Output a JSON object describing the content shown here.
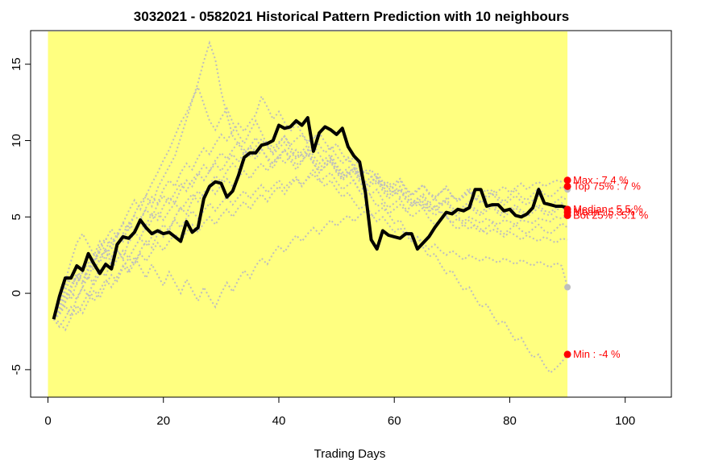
{
  "chart_data": {
    "type": "line",
    "title": "3032021 - 0582021 Historical Pattern Prediction with 10 neighbours",
    "xlabel": "Trading Days",
    "ylabel": "",
    "xlim": [
      -3,
      108
    ],
    "ylim": [
      -6.8,
      17.2
    ],
    "x_ticks": [
      0,
      20,
      40,
      60,
      80,
      100
    ],
    "y_ticks": [
      -5,
      0,
      5,
      10,
      15
    ],
    "highlight_region": {
      "x_from": 0,
      "x_to": 90,
      "color": "#ffff80"
    },
    "main_series": {
      "name": "",
      "color": "#000000",
      "x": [
        1,
        2,
        3,
        4,
        5,
        6,
        7,
        8,
        9,
        10,
        11,
        12,
        13,
        14,
        15,
        16,
        17,
        18,
        19,
        20,
        21,
        22,
        23,
        24,
        25,
        26,
        27,
        28,
        29,
        30,
        31,
        32,
        33,
        34,
        35,
        36,
        37,
        38,
        39,
        40,
        41,
        42,
        43,
        44,
        45,
        46,
        47,
        48,
        49,
        50,
        51,
        52,
        53,
        54,
        55,
        56,
        57,
        58,
        59,
        60,
        61,
        62,
        63,
        64,
        65,
        66,
        67,
        68,
        69,
        70,
        71,
        72,
        73,
        74,
        75,
        76,
        77,
        78,
        79,
        80,
        81,
        82,
        83,
        84,
        85,
        86,
        87,
        88,
        89,
        90
      ],
      "y": [
        -1.7,
        -0.2,
        1.0,
        1.0,
        1.8,
        1.5,
        2.6,
        1.9,
        1.3,
        1.9,
        1.6,
        3.2,
        3.7,
        3.6,
        4.0,
        4.8,
        4.3,
        3.9,
        4.1,
        3.9,
        4.0,
        3.7,
        3.4,
        4.7,
        4.0,
        4.3,
        6.2,
        7.0,
        7.3,
        7.2,
        6.3,
        6.7,
        7.7,
        8.9,
        9.2,
        9.2,
        9.7,
        9.8,
        10.0,
        11.0,
        10.8,
        10.9,
        11.3,
        11.0,
        11.5,
        9.3,
        10.5,
        10.9,
        10.7,
        10.4,
        10.8,
        9.6,
        9.0,
        8.6,
        6.6,
        3.5,
        2.9,
        4.1,
        3.8,
        3.7,
        3.6,
        3.9,
        3.9,
        2.9,
        3.3,
        3.7,
        4.3,
        4.8,
        5.3,
        5.2,
        5.5,
        5.4,
        5.6,
        6.8,
        6.8,
        5.7,
        5.8,
        5.8,
        5.4,
        5.5,
        5.1,
        5.0,
        5.2,
        5.6,
        6.8,
        5.9,
        5.8,
        5.7,
        5.7,
        5.6
      ]
    },
    "neighbour_series": [
      {
        "x_start": 1,
        "y": [
          -1.7,
          -0.6,
          0.5,
          1.2,
          0.9,
          1.8,
          2.4,
          2.0,
          3.1,
          3.6,
          2.9,
          3.9,
          4.6,
          4.1,
          5.2,
          5.9,
          6.4,
          5.7,
          6.9,
          7.6,
          8.3,
          9.0,
          10.2,
          11.4,
          12.6,
          13.8,
          15.2,
          16.4,
          15.3,
          13.2,
          11.7,
          10.3,
          9.8,
          9.1,
          9.6,
          10.2,
          9.5,
          8.8,
          8.2,
          8.9,
          9.4,
          8.7,
          8.1,
          8.6,
          9.2,
          8.5,
          7.9,
          8.3,
          8.7,
          8.0,
          7.5,
          7.8,
          8.2,
          7.6,
          7.1,
          7.3,
          7.7,
          7.0,
          6.6,
          7.0,
          7.4,
          6.8,
          6.4,
          6.7,
          7.1,
          6.5,
          6.2,
          6.6,
          7.0,
          6.4,
          6.1,
          6.5,
          6.9,
          6.3,
          6.0,
          6.4,
          6.8,
          6.3,
          6.0,
          6.4,
          6.8,
          6.3,
          6.1,
          6.5,
          6.9,
          6.5,
          6.3,
          6.6,
          7.0,
          6.8
        ]
      },
      {
        "x_start": 1,
        "y": [
          -1.7,
          -1.2,
          -0.5,
          0.3,
          1.1,
          0.6,
          1.5,
          2.2,
          2.8,
          3.5,
          4.2,
          3.7,
          4.6,
          5.4,
          6.1,
          5.5,
          6.4,
          7.2,
          7.9,
          8.7,
          9.4,
          10.3,
          11.2,
          11.8,
          12.7,
          13.5,
          12.4,
          11.3,
          10.7,
          11.5,
          12.1,
          11.2,
          10.4,
          9.8,
          10.6,
          11.3,
          10.5,
          9.7,
          9.2,
          9.8,
          10.3,
          9.6,
          8.9,
          9.3,
          9.7,
          9.0,
          8.5,
          8.8,
          9.1,
          8.4,
          7.9,
          8.2,
          8.5,
          7.8,
          7.3,
          7.6,
          7.9,
          7.3,
          6.9,
          7.2,
          7.5,
          6.9,
          6.5,
          6.8,
          7.1,
          6.6,
          6.3,
          6.6,
          6.9,
          6.4,
          6.1,
          6.4,
          6.7,
          6.2,
          5.9,
          6.2,
          6.5,
          6.1,
          5.8,
          6.1,
          6.4,
          6.0,
          5.8,
          6.1,
          6.4,
          6.0,
          5.8,
          6.0,
          6.3,
          6.1
        ]
      },
      {
        "x_start": 1,
        "y": [
          -1.7,
          -0.9,
          0.1,
          -0.4,
          0.7,
          1.4,
          1.0,
          2.1,
          2.7,
          2.2,
          3.3,
          3.9,
          3.4,
          4.5,
          5.1,
          4.7,
          5.6,
          6.3,
          5.9,
          6.8,
          7.4,
          7.0,
          7.9,
          8.5,
          8.1,
          8.9,
          9.5,
          9.1,
          9.8,
          10.4,
          10.0,
          10.6,
          11.1,
          10.6,
          11.2,
          11.7,
          12.9,
          12.2,
          11.4,
          11.9,
          11.2,
          10.6,
          11.1,
          10.5,
          9.9,
          10.3,
          9.7,
          9.2,
          9.6,
          9.0,
          8.5,
          8.9,
          8.3,
          7.8,
          8.1,
          7.6,
          7.1,
          7.4,
          6.9,
          6.5,
          6.8,
          6.3,
          5.9,
          6.2,
          5.8,
          5.4,
          5.7,
          5.3,
          5.0,
          5.3,
          5.0,
          4.7,
          5.0,
          4.8,
          4.6,
          4.9,
          4.7,
          4.5,
          4.8,
          4.7,
          4.5,
          4.8,
          4.7,
          4.6,
          4.9,
          4.8,
          4.7,
          5.0,
          4.9,
          5.1
        ]
      },
      {
        "x_start": 1,
        "y": [
          -1.7,
          -1.4,
          -0.8,
          -1.5,
          -0.3,
          0.4,
          -0.2,
          0.9,
          1.6,
          1.1,
          2.2,
          2.8,
          2.3,
          3.4,
          4.0,
          3.6,
          4.5,
          5.2,
          4.8,
          5.7,
          6.3,
          5.9,
          6.8,
          7.4,
          7.0,
          7.8,
          8.4,
          8.0,
          8.7,
          9.2,
          8.8,
          9.4,
          9.9,
          9.4,
          9.0,
          9.6,
          10.1,
          9.6,
          9.1,
          9.5,
          9.9,
          9.3,
          8.8,
          9.1,
          9.4,
          8.7,
          8.2,
          8.5,
          8.8,
          8.1,
          7.6,
          7.9,
          8.2,
          7.5,
          7.0,
          7.3,
          7.6,
          6.9,
          6.4,
          6.7,
          7.0,
          6.3,
          5.9,
          6.2,
          6.5,
          5.9,
          5.6,
          5.9,
          6.2,
          5.6,
          5.4,
          5.7,
          6.0,
          5.5,
          5.3,
          5.6,
          5.9,
          5.4,
          5.2,
          5.5,
          5.8,
          5.4,
          5.2,
          5.5,
          5.8,
          5.4,
          5.3,
          5.6,
          5.9,
          5.5
        ]
      },
      {
        "x_start": 1,
        "y": [
          -1.7,
          -1.9,
          -2.4,
          -1.6,
          -0.8,
          -1.3,
          -0.5,
          0.2,
          -0.3,
          0.6,
          1.2,
          0.8,
          1.7,
          2.3,
          1.9,
          2.8,
          3.4,
          3.0,
          3.9,
          4.5,
          4.1,
          5.0,
          5.6,
          5.2,
          6.1,
          6.7,
          6.3,
          7.1,
          7.7,
          7.3,
          8.0,
          8.5,
          8.1,
          8.7,
          9.2,
          8.8,
          9.4,
          8.9,
          8.5,
          9.0,
          9.4,
          8.9,
          8.4,
          8.7,
          9.1,
          8.5,
          8.0,
          8.3,
          8.6,
          7.9,
          7.4,
          7.7,
          8.0,
          7.3,
          6.8,
          7.1,
          7.4,
          6.7,
          6.2,
          6.5,
          6.8,
          6.1,
          5.7,
          6.0,
          6.3,
          5.7,
          5.4,
          5.7,
          6.0,
          5.4,
          5.2,
          5.5,
          5.8,
          5.3,
          5.1,
          5.4,
          5.7,
          5.2,
          5.0,
          5.3,
          5.6,
          5.2,
          5.0,
          5.3,
          5.6,
          5.2,
          5.1,
          5.4,
          5.7,
          5.3
        ]
      },
      {
        "x_start": 1,
        "y": [
          -1.7,
          -0.4,
          0.8,
          2.1,
          3.3,
          3.9,
          3.2,
          2.5,
          3.4,
          2.7,
          2.0,
          2.9,
          2.2,
          1.5,
          2.4,
          1.7,
          1.0,
          1.9,
          1.2,
          0.5,
          1.4,
          0.7,
          0.0,
          0.9,
          0.2,
          -0.5,
          0.4,
          -0.3,
          -0.9,
          0.0,
          0.7,
          0.1,
          0.9,
          1.5,
          1.0,
          1.8,
          2.3,
          1.9,
          2.6,
          3.1,
          2.7,
          3.3,
          3.8,
          3.4,
          3.9,
          4.3,
          3.9,
          4.4,
          4.8,
          4.4,
          4.8,
          5.1,
          4.7,
          5.1,
          5.4,
          5.0,
          5.3,
          5.6,
          5.2,
          5.5,
          5.8,
          5.4,
          5.7,
          6.0,
          5.6,
          5.9,
          6.2,
          5.8,
          6.1,
          6.4,
          6.0,
          6.3,
          6.6,
          6.2,
          6.5,
          6.8,
          6.4,
          6.7,
          7.0,
          6.6,
          6.9,
          7.2,
          6.8,
          7.1,
          7.3,
          7.0,
          7.2,
          7.4,
          7.3,
          7.4
        ]
      },
      {
        "x_start": 1,
        "y": [
          -1.7,
          -2.2,
          -1.6,
          -0.9,
          -1.4,
          -0.7,
          0.0,
          -0.5,
          0.2,
          0.9,
          0.4,
          1.1,
          1.8,
          1.3,
          2.0,
          2.6,
          2.1,
          2.7,
          3.3,
          2.8,
          3.4,
          3.9,
          3.4,
          4.0,
          4.5,
          4.0,
          4.6,
          5.0,
          4.5,
          5.1,
          5.5,
          5.0,
          5.6,
          6.0,
          5.5,
          6.1,
          6.5,
          6.0,
          6.6,
          7.0,
          6.5,
          7.1,
          7.5,
          7.0,
          7.6,
          8.1,
          7.5,
          7.0,
          7.4,
          6.8,
          6.3,
          6.6,
          6.0,
          5.5,
          5.8,
          5.2,
          4.7,
          5.0,
          4.5,
          4.0,
          4.3,
          3.8,
          3.4,
          3.7,
          3.3,
          2.9,
          3.2,
          2.8,
          2.5,
          2.8,
          2.5,
          2.2,
          2.5,
          2.3,
          2.1,
          2.4,
          2.2,
          2.0,
          2.3,
          2.1,
          1.9,
          2.2,
          2.0,
          1.8,
          2.1,
          1.9,
          1.7,
          2.0,
          1.8,
          0.4
        ]
      },
      {
        "x_start": 1,
        "y": [
          -1.7,
          -0.7,
          0.2,
          1.0,
          0.6,
          1.4,
          2.0,
          1.5,
          2.3,
          2.9,
          2.4,
          3.2,
          3.8,
          3.3,
          4.0,
          4.6,
          4.1,
          4.8,
          5.3,
          4.8,
          5.4,
          5.9,
          5.4,
          6.0,
          6.5,
          6.0,
          6.6,
          7.0,
          6.5,
          7.1,
          7.5,
          7.0,
          7.6,
          8.0,
          7.5,
          8.1,
          8.5,
          8.0,
          8.6,
          9.0,
          8.5,
          9.0,
          9.4,
          8.9,
          9.3,
          9.7,
          9.1,
          8.5,
          8.9,
          8.3,
          7.7,
          8.0,
          7.3,
          6.7,
          7.0,
          6.3,
          5.7,
          5.9,
          5.2,
          4.6,
          4.8,
          4.1,
          3.5,
          3.7,
          3.0,
          2.4,
          2.6,
          1.9,
          1.3,
          1.5,
          0.8,
          0.2,
          0.4,
          -0.3,
          -0.9,
          -0.7,
          -1.4,
          -2.0,
          -1.8,
          -2.5,
          -3.1,
          -2.9,
          -3.6,
          -4.2,
          -4.0,
          -4.7,
          -5.2,
          -4.9,
          -4.5,
          -4.0
        ]
      },
      {
        "x_start": 1,
        "y": [
          -1.7,
          -1.0,
          -0.2,
          0.5,
          1.3,
          0.8,
          1.7,
          2.5,
          2.0,
          2.9,
          3.6,
          3.1,
          3.9,
          4.6,
          4.1,
          4.9,
          5.5,
          5.0,
          5.8,
          6.4,
          5.9,
          6.6,
          7.2,
          6.7,
          7.4,
          7.9,
          7.4,
          8.0,
          8.5,
          8.0,
          8.6,
          9.1,
          8.6,
          9.2,
          9.6,
          9.1,
          9.6,
          10.0,
          9.5,
          9.9,
          10.3,
          9.7,
          10.1,
          10.4,
          9.8,
          10.2,
          10.5,
          9.9,
          9.4,
          9.8,
          9.1,
          8.6,
          8.9,
          8.3,
          7.8,
          8.1,
          7.5,
          7.0,
          7.3,
          6.8,
          6.3,
          6.6,
          6.1,
          5.7,
          6.0,
          5.5,
          5.1,
          5.4,
          5.0,
          4.6,
          4.9,
          4.5,
          4.2,
          4.5,
          4.2,
          3.9,
          4.2,
          4.0,
          3.7,
          4.0,
          3.8,
          3.5,
          3.8,
          3.6,
          3.4,
          3.7,
          3.5,
          3.3,
          3.6,
          3.5
        ]
      },
      {
        "x_start": 1,
        "y": [
          -1.7,
          -1.3,
          -0.6,
          0.1,
          -0.4,
          0.4,
          1.1,
          0.6,
          1.3,
          2.0,
          1.5,
          2.2,
          2.8,
          2.3,
          3.0,
          3.6,
          3.1,
          3.7,
          4.2,
          3.7,
          4.3,
          4.8,
          4.3,
          4.9,
          5.4,
          4.9,
          5.4,
          5.9,
          5.4,
          5.9,
          6.3,
          5.8,
          6.3,
          6.7,
          6.2,
          6.7,
          7.1,
          6.6,
          7.0,
          7.4,
          6.9,
          7.3,
          7.6,
          7.1,
          7.5,
          7.8,
          7.3,
          7.6,
          7.9,
          7.3,
          6.8,
          7.1,
          7.4,
          6.7,
          6.2,
          6.5,
          6.8,
          6.1,
          5.6,
          5.9,
          6.2,
          5.5,
          5.0,
          5.3,
          5.6,
          4.9,
          4.5,
          4.8,
          5.1,
          4.5,
          4.2,
          4.5,
          4.8,
          4.3,
          4.0,
          4.3,
          4.6,
          4.2,
          3.9,
          4.2,
          4.5,
          4.1,
          3.9,
          4.2,
          4.5,
          4.1,
          3.9,
          4.2,
          4.6,
          4.3
        ]
      }
    ],
    "neighbour_style": {
      "color": "#bebebe",
      "dash": "dotted"
    },
    "endpoint_gray": [
      {
        "x": 90,
        "y": 6.8
      },
      {
        "x": 90,
        "y": 0.4
      }
    ],
    "prediction_points": [
      {
        "label": "Max : 7.4 %",
        "x": 90,
        "y": 7.4
      },
      {
        "label": "Top 75% : 7 %",
        "x": 90,
        "y": 7.0
      },
      {
        "label": "Median : 5.5 %",
        "x": 90,
        "y": 5.5
      },
      {
        "label": "Mean : 5.3 %",
        "x": 90,
        "y": 5.3
      },
      {
        "label": "Bot 25% : 5.1 %",
        "x": 90,
        "y": 5.1
      },
      {
        "label": "Min : -4 %",
        "x": 90,
        "y": -4.0
      }
    ],
    "prediction_color": "#ff0000"
  }
}
